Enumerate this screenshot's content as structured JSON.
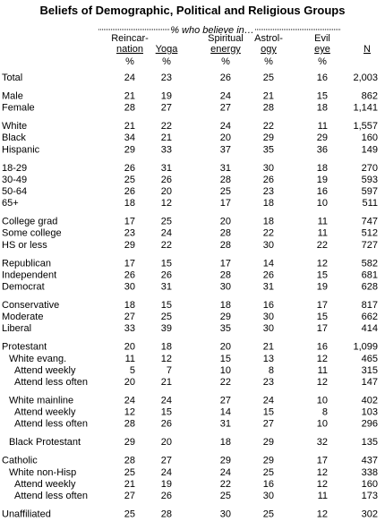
{
  "header": {
    "title": "Beliefs of Demographic, Political and Religious Groups",
    "subtitle": "% who believe in…"
  },
  "columns": [
    {
      "lines": [
        "Reincar-",
        "nation"
      ],
      "unit": "%"
    },
    {
      "lines": [
        "Yoga"
      ],
      "unit": "%"
    },
    {
      "lines": [
        "Spiritual",
        "energy"
      ],
      "unit": "%"
    },
    {
      "lines": [
        "Astrol-",
        "ogy"
      ],
      "unit": "%"
    },
    {
      "lines": [
        "Evil",
        "eye"
      ],
      "unit": "%"
    },
    {
      "lines": [
        "N"
      ]
    }
  ],
  "groups": [
    [
      {
        "label": "Total",
        "values": [
          "24",
          "23",
          "26",
          "25",
          "16",
          "2,003"
        ]
      }
    ],
    [
      {
        "label": "Male",
        "values": [
          "21",
          "19",
          "24",
          "21",
          "15",
          "862"
        ]
      },
      {
        "label": "Female",
        "values": [
          "28",
          "27",
          "27",
          "28",
          "18",
          "1,141"
        ]
      }
    ],
    [
      {
        "label": "White",
        "values": [
          "21",
          "22",
          "24",
          "22",
          "11",
          "1,557"
        ]
      },
      {
        "label": "Black",
        "values": [
          "34",
          "21",
          "20",
          "29",
          "29",
          "160"
        ]
      },
      {
        "label": "Hispanic",
        "values": [
          "29",
          "33",
          "37",
          "35",
          "36",
          "149"
        ]
      }
    ],
    [
      {
        "label": "18-29",
        "values": [
          "26",
          "31",
          "31",
          "30",
          "18",
          "270"
        ]
      },
      {
        "label": "30-49",
        "values": [
          "25",
          "26",
          "28",
          "26",
          "19",
          "593"
        ]
      },
      {
        "label": "50-64",
        "values": [
          "26",
          "20",
          "25",
          "23",
          "16",
          "597"
        ]
      },
      {
        "label": "65+",
        "values": [
          "18",
          "12",
          "17",
          "18",
          "10",
          "511"
        ]
      }
    ],
    [
      {
        "label": "College grad",
        "values": [
          "17",
          "25",
          "20",
          "18",
          "11",
          "747"
        ]
      },
      {
        "label": "Some college",
        "values": [
          "23",
          "24",
          "28",
          "22",
          "11",
          "512"
        ]
      },
      {
        "label": "HS or less",
        "values": [
          "29",
          "22",
          "28",
          "30",
          "22",
          "727"
        ]
      }
    ],
    [
      {
        "label": "Republican",
        "values": [
          "17",
          "15",
          "17",
          "14",
          "12",
          "582"
        ]
      },
      {
        "label": "Independent",
        "values": [
          "26",
          "26",
          "28",
          "26",
          "15",
          "681"
        ]
      },
      {
        "label": "Democrat",
        "values": [
          "30",
          "31",
          "30",
          "31",
          "19",
          "628"
        ]
      }
    ],
    [
      {
        "label": "Conservative",
        "values": [
          "18",
          "15",
          "18",
          "16",
          "17",
          "817"
        ]
      },
      {
        "label": "Moderate",
        "values": [
          "27",
          "25",
          "29",
          "30",
          "15",
          "662"
        ]
      },
      {
        "label": "Liberal",
        "values": [
          "33",
          "39",
          "35",
          "30",
          "17",
          "414"
        ]
      }
    ],
    [
      {
        "label": "Protestant",
        "values": [
          "20",
          "18",
          "20",
          "21",
          "16",
          "1,099"
        ]
      },
      {
        "label": "White evang.",
        "values": [
          "11",
          "12",
          "15",
          "13",
          "12",
          "465"
        ]
      },
      {
        "label": "Attend weekly",
        "values": [
          "5",
          "7",
          "10",
          "8",
          "11",
          "315"
        ]
      },
      {
        "label": "Attend less often",
        "values": [
          "20",
          "21",
          "22",
          "23",
          "12",
          "147"
        ]
      }
    ],
    [
      {
        "label": "White mainline",
        "values": [
          "24",
          "24",
          "27",
          "24",
          "10",
          "402"
        ]
      },
      {
        "label": "Attend weekly",
        "values": [
          "12",
          "15",
          "14",
          "15",
          "8",
          "103"
        ]
      },
      {
        "label": "Attend less often",
        "values": [
          "28",
          "26",
          "31",
          "27",
          "10",
          "296"
        ]
      }
    ],
    [
      {
        "label": "Black Protestant",
        "values": [
          "29",
          "20",
          "18",
          "29",
          "32",
          "135"
        ]
      }
    ],
    [
      {
        "label": "Catholic",
        "values": [
          "28",
          "27",
          "29",
          "29",
          "17",
          "437"
        ]
      },
      {
        "label": "White non-Hisp",
        "values": [
          "25",
          "24",
          "24",
          "25",
          "12",
          "338"
        ]
      },
      {
        "label": "Attend weekly",
        "values": [
          "21",
          "19",
          "22",
          "16",
          "12",
          "160"
        ]
      },
      {
        "label": "Attend less often",
        "values": [
          "27",
          "26",
          "25",
          "30",
          "11",
          "173"
        ]
      }
    ],
    [
      {
        "label": "Unaffiliated",
        "values": [
          "25",
          "28",
          "30",
          "25",
          "12",
          "302"
        ]
      }
    ]
  ]
}
